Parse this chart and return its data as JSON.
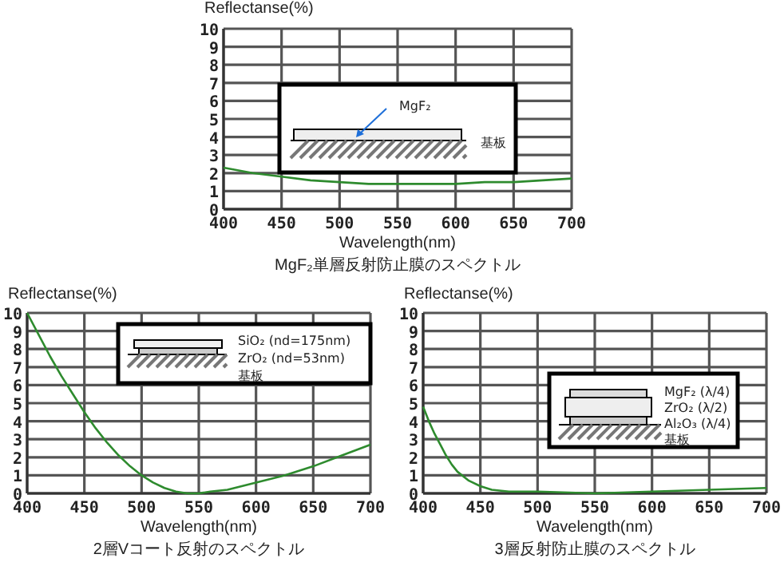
{
  "chart_data": [
    {
      "type": "line",
      "title": "MgF₂単層反射防止膜のスペクトル",
      "xlabel": "Wavelength(nm)",
      "ylabel": "Reflectanse(%)",
      "xlim": [
        400,
        700
      ],
      "xticks": [
        400,
        450,
        500,
        550,
        600,
        650,
        700
      ],
      "ylim": [
        0,
        10
      ],
      "yticks": [
        0,
        1,
        2,
        3,
        4,
        5,
        6,
        7,
        8,
        9,
        10
      ],
      "grid": true,
      "series": [
        {
          "color": "#2e8b2e",
          "x": [
            400,
            425,
            450,
            475,
            500,
            525,
            550,
            575,
            600,
            625,
            650,
            675,
            700
          ],
          "values": [
            2.3,
            2.0,
            1.8,
            1.6,
            1.5,
            1.4,
            1.4,
            1.4,
            1.4,
            1.5,
            1.5,
            1.6,
            1.7
          ]
        }
      ],
      "annotations": [
        "MgF₂",
        "基板"
      ]
    },
    {
      "type": "line",
      "title": "2層Vコート反射のスペクトル",
      "xlabel": "Wavelength(nm)",
      "ylabel": "Reflectanse(%)",
      "xlim": [
        400,
        700
      ],
      "xticks": [
        400,
        450,
        500,
        550,
        600,
        650,
        700
      ],
      "ylim": [
        0,
        10
      ],
      "yticks": [
        0,
        1,
        2,
        3,
        4,
        5,
        6,
        7,
        8,
        9,
        10
      ],
      "grid": true,
      "series": [
        {
          "color": "#2e8b2e",
          "x": [
            400,
            410,
            420,
            430,
            440,
            450,
            460,
            470,
            480,
            490,
            500,
            510,
            520,
            530,
            540,
            550,
            560,
            575,
            600,
            625,
            650,
            675,
            700
          ],
          "values": [
            10,
            8.8,
            7.6,
            6.5,
            5.5,
            4.5,
            3.6,
            2.8,
            2.1,
            1.5,
            1.0,
            0.6,
            0.3,
            0.1,
            0.0,
            0.0,
            0.1,
            0.2,
            0.6,
            1.0,
            1.5,
            2.1,
            2.7
          ]
        }
      ],
      "annotations": [
        "SiO₂ (nd=175nm)",
        "ZrO₂ (nd=53nm)",
        "基板"
      ]
    },
    {
      "type": "line",
      "title": "3層反射防止膜のスペクトル",
      "xlabel": "Wavelength(nm)",
      "ylabel": "Reflectanse(%)",
      "xlim": [
        400,
        700
      ],
      "xticks": [
        400,
        450,
        500,
        550,
        600,
        650,
        700
      ],
      "ylim": [
        0,
        10
      ],
      "yticks": [
        0,
        1,
        2,
        3,
        4,
        5,
        6,
        7,
        8,
        9,
        10
      ],
      "grid": true,
      "series": [
        {
          "color": "#2e8b2e",
          "x": [
            400,
            405,
            410,
            415,
            420,
            425,
            430,
            440,
            450,
            460,
            475,
            500,
            550,
            600,
            650,
            700
          ],
          "values": [
            4.8,
            4.0,
            3.3,
            2.7,
            2.1,
            1.6,
            1.2,
            0.7,
            0.4,
            0.2,
            0.1,
            0.1,
            0.0,
            0.1,
            0.2,
            0.3
          ]
        }
      ],
      "annotations": [
        "MgF₂ (λ/4)",
        "ZrO₂ (λ/2)",
        "Al₂O₃ (λ/4)",
        "基板"
      ]
    }
  ]
}
